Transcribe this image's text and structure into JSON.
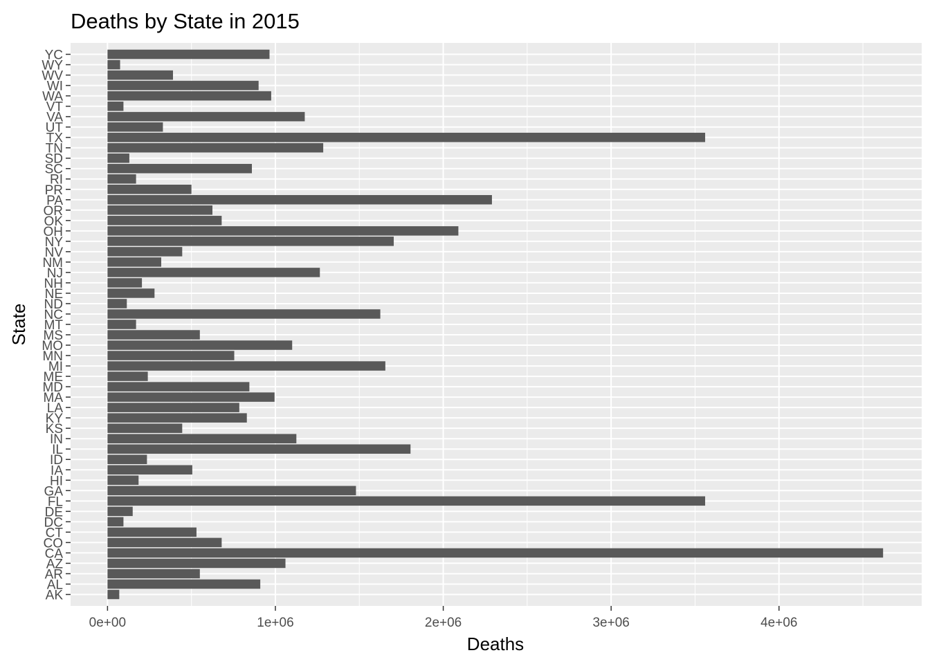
{
  "chart_data": {
    "type": "bar",
    "orientation": "horizontal",
    "title": "Deaths by State in 2015",
    "xlabel": "Deaths",
    "ylabel": "State",
    "xlim": [
      -220000,
      4850000
    ],
    "xticks": [
      0,
      1000000,
      2000000,
      3000000,
      4000000
    ],
    "xtick_labels": [
      "0e+00",
      "1e+06",
      "2e+06",
      "3e+06",
      "4e+06"
    ],
    "grid": true,
    "bar_color": "#595959",
    "panel_color": "#ebebeb",
    "categories": [
      "AK",
      "AL",
      "AR",
      "AZ",
      "CA",
      "CO",
      "CT",
      "DC",
      "DE",
      "FL",
      "GA",
      "HI",
      "IA",
      "ID",
      "IL",
      "IN",
      "KS",
      "KY",
      "LA",
      "MA",
      "MD",
      "ME",
      "MI",
      "MN",
      "MO",
      "MS",
      "MT",
      "NC",
      "ND",
      "NE",
      "NH",
      "NJ",
      "NM",
      "NV",
      "NY",
      "OH",
      "OK",
      "OR",
      "PA",
      "PR",
      "RI",
      "SC",
      "SD",
      "TN",
      "TX",
      "UT",
      "VA",
      "VT",
      "WA",
      "WI",
      "WV",
      "WY",
      "YC"
    ],
    "values": [
      70000,
      910000,
      550000,
      1060000,
      4620000,
      680000,
      530000,
      95000,
      150000,
      3560000,
      1480000,
      185000,
      505000,
      235000,
      1805000,
      1125000,
      445000,
      830000,
      785000,
      995000,
      845000,
      240000,
      1655000,
      755000,
      1100000,
      550000,
      170000,
      1625000,
      115000,
      280000,
      205000,
      1265000,
      320000,
      445000,
      1705000,
      2090000,
      680000,
      625000,
      2290000,
      500000,
      170000,
      860000,
      130000,
      1285000,
      3560000,
      330000,
      1175000,
      95000,
      975000,
      900000,
      390000,
      75000,
      965000
    ]
  }
}
